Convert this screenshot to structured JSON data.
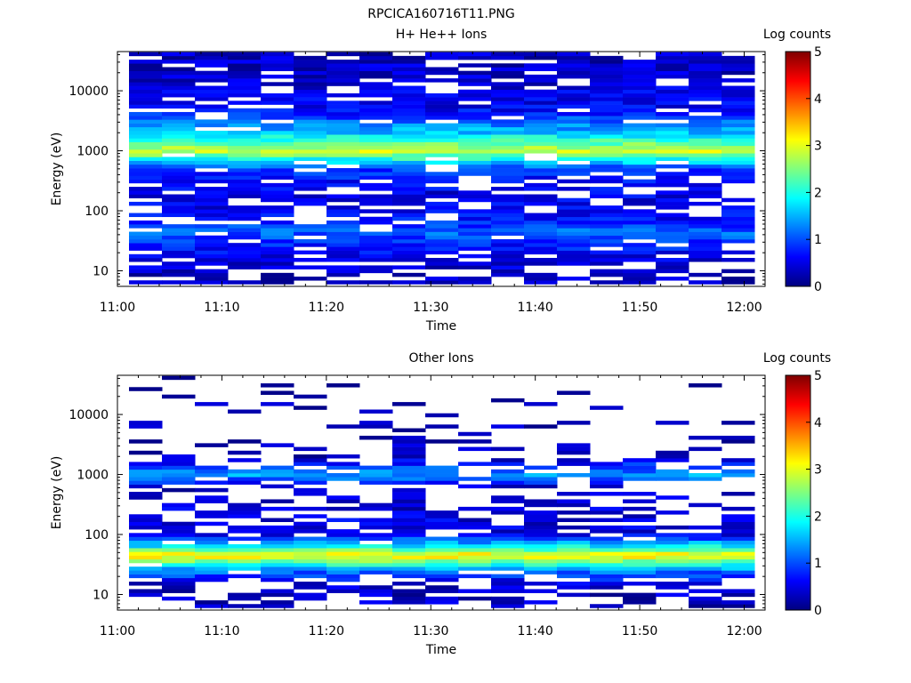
{
  "figure_title": "RPCICA160716T11.PNG",
  "colormap": [
    "#00007f",
    "#0000ff",
    "#007fff",
    "#00ffff",
    "#7fff7f",
    "#ffff00",
    "#ff7f00",
    "#ff0000",
    "#7f0000"
  ],
  "chart_data": [
    {
      "type": "heatmap",
      "title": "H+ He++ Ions",
      "xlabel": "Time",
      "ylabel": "Energy (eV)",
      "x_range": [
        "11:00",
        "12:02"
      ],
      "x_ticks": [
        "11:00",
        "11:10",
        "11:20",
        "11:30",
        "11:40",
        "11:50",
        "12:00"
      ],
      "y_scale": "log",
      "y_range": [
        5.5,
        45000
      ],
      "y_ticks": [
        "10",
        "100",
        "1000",
        "10000"
      ],
      "colorbar": {
        "label": "Log counts",
        "range": [
          0,
          5
        ],
        "ticks": [
          "0",
          "1",
          "2",
          "3",
          "4",
          "5"
        ]
      },
      "time_bins": 19,
      "energy_bins": 62,
      "profile": [
        {
          "energy": 8,
          "log_counts": 0.3,
          "coverage": 0.55
        },
        {
          "energy": 15,
          "log_counts": 0.5,
          "coverage": 0.7
        },
        {
          "energy": 25,
          "log_counts": 0.7,
          "coverage": 0.85
        },
        {
          "energy": 45,
          "log_counts": 1.1,
          "coverage": 0.95
        },
        {
          "energy": 80,
          "log_counts": 0.6,
          "coverage": 0.75
        },
        {
          "energy": 200,
          "log_counts": 0.5,
          "coverage": 0.7
        },
        {
          "energy": 500,
          "log_counts": 0.9,
          "coverage": 0.85
        },
        {
          "energy": 1000,
          "log_counts": 2.9,
          "coverage": 1.0
        },
        {
          "energy": 2000,
          "log_counts": 1.6,
          "coverage": 1.0
        },
        {
          "energy": 5000,
          "log_counts": 0.6,
          "coverage": 0.8
        },
        {
          "energy": 20000,
          "log_counts": 0.35,
          "coverage": 0.8
        }
      ]
    },
    {
      "type": "heatmap",
      "title": "Other Ions",
      "xlabel": "Time",
      "ylabel": "Energy (eV)",
      "x_range": [
        "11:00",
        "12:02"
      ],
      "x_ticks": [
        "11:00",
        "11:10",
        "11:20",
        "11:30",
        "11:40",
        "11:50",
        "12:00"
      ],
      "y_scale": "log",
      "y_range": [
        5.5,
        45000
      ],
      "y_ticks": [
        "10",
        "100",
        "1000",
        "10000"
      ],
      "colorbar": {
        "label": "Log counts",
        "range": [
          0,
          5
        ],
        "ticks": [
          "0",
          "1",
          "2",
          "3",
          "4",
          "5"
        ]
      },
      "time_bins": 19,
      "energy_bins": 62,
      "profile": [
        {
          "energy": 8,
          "log_counts": 0.3,
          "coverage": 0.55
        },
        {
          "energy": 15,
          "log_counts": 0.4,
          "coverage": 0.6
        },
        {
          "energy": 25,
          "log_counts": 1.2,
          "coverage": 0.9
        },
        {
          "energy": 35,
          "log_counts": 2.4,
          "coverage": 1.0
        },
        {
          "energy": 45,
          "log_counts": 3.3,
          "coverage": 1.0
        },
        {
          "energy": 60,
          "log_counts": 2.0,
          "coverage": 1.0
        },
        {
          "energy": 100,
          "log_counts": 0.5,
          "coverage": 0.7
        },
        {
          "energy": 250,
          "log_counts": 0.45,
          "coverage": 0.6
        },
        {
          "energy": 600,
          "log_counts": 0.3,
          "coverage": 0.3
        },
        {
          "energy": 1000,
          "log_counts": 1.4,
          "coverage": 1.0
        },
        {
          "energy": 2000,
          "log_counts": 0.25,
          "coverage": 0.25
        },
        {
          "energy": 10000,
          "log_counts": 0.2,
          "coverage": 0.18
        },
        {
          "energy": 40000,
          "log_counts": 0.1,
          "coverage": 0.05
        }
      ]
    }
  ]
}
